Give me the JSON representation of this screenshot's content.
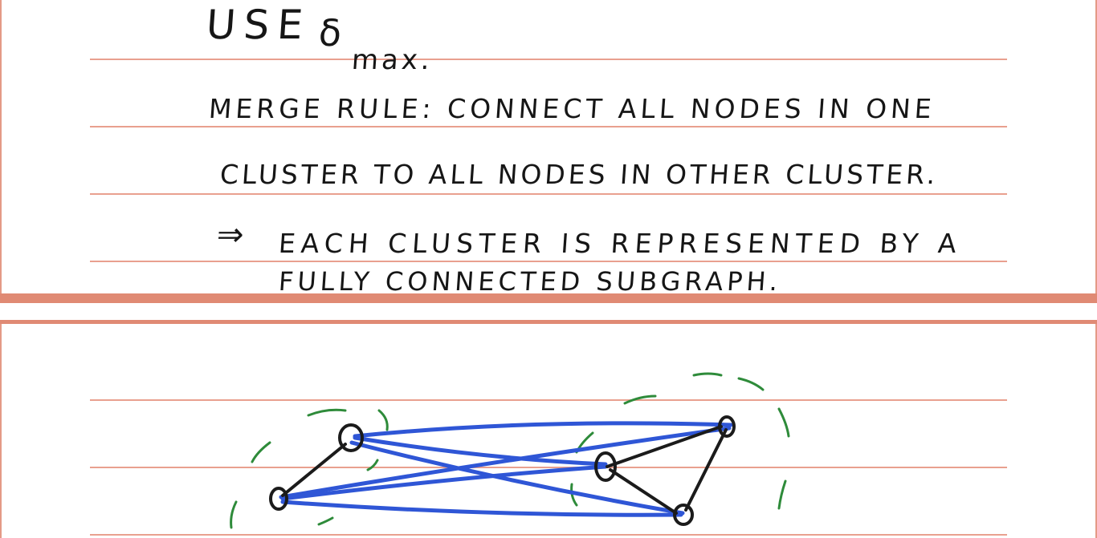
{
  "slide_top": {
    "line1_use": "USE",
    "line1_delta": "δ",
    "line1_sub": "max.",
    "line2": "MERGE RULE: CONNECT ALL NODES IN ONE",
    "line3": "CLUSTER TO ALL NODES IN OTHER CLUSTER.",
    "line4_arrow": "⇒",
    "line4": "EACH CLUSTER IS REPRESENTED BY A",
    "line5": "FULLY CONNECTED SUBGRAPH."
  },
  "graph": {
    "ink_black": "#1b1b1b",
    "ink_blue": "#2f56d6",
    "ink_green": "#2e8b3a",
    "paper_line": "#e9a08f",
    "card_border": "#e08a74"
  }
}
